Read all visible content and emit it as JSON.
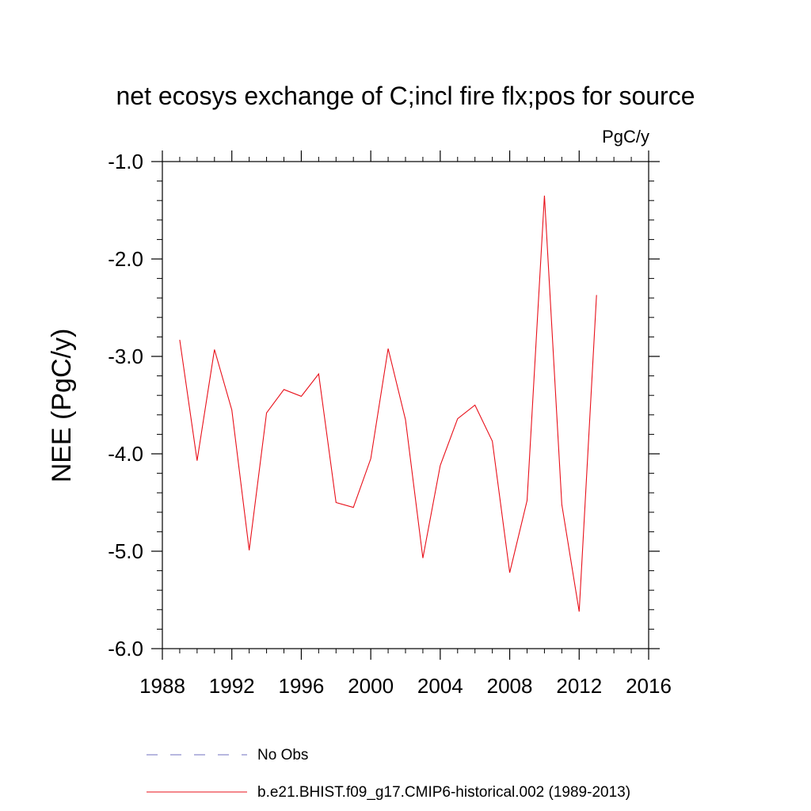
{
  "chart_data": {
    "type": "line",
    "title": "net ecosys exchange of C;incl fire flx;pos for source",
    "units": "PgC/y",
    "xlabel": "",
    "ylabel": "NEE  (PgC/y)",
    "xlim": [
      1988,
      2016
    ],
    "ylim": [
      -6.0,
      -1.0
    ],
    "x_ticks": [
      1988,
      1992,
      1996,
      2000,
      2004,
      2008,
      2012,
      2016
    ],
    "x_tick_labels": [
      "1988",
      "1992",
      "1996",
      "2000",
      "2004",
      "2008",
      "2012",
      "2016"
    ],
    "y_ticks": [
      -1.0,
      -2.0,
      -3.0,
      -4.0,
      -5.0,
      -6.0
    ],
    "y_tick_labels": [
      "-1.0",
      "-2.0",
      "-3.0",
      "-4.0",
      "-5.0",
      "-6.0"
    ],
    "grid": false,
    "legend_position": "bottom",
    "series": [
      {
        "name": "No Obs",
        "color": "#6f6fbf",
        "style": "dashed",
        "x": [],
        "values": []
      },
      {
        "name": "b.e21.BHIST.f09_g17.CMIP6-historical.002 (1989-2013)",
        "color": "#e8101a",
        "style": "solid",
        "x": [
          1989,
          1990,
          1991,
          1992,
          1993,
          1994,
          1995,
          1996,
          1997,
          1998,
          1999,
          2000,
          2001,
          2002,
          2003,
          2004,
          2005,
          2006,
          2007,
          2008,
          2009,
          2010,
          2011,
          2012,
          2013
        ],
        "values": [
          -2.83,
          -4.07,
          -2.93,
          -3.55,
          -4.99,
          -3.58,
          -3.34,
          -3.41,
          -3.18,
          -4.5,
          -4.55,
          -4.05,
          -2.92,
          -3.65,
          -5.07,
          -4.12,
          -3.64,
          -3.5,
          -3.87,
          -5.22,
          -4.48,
          -1.35,
          -4.52,
          -5.62,
          -2.37
        ]
      }
    ]
  }
}
